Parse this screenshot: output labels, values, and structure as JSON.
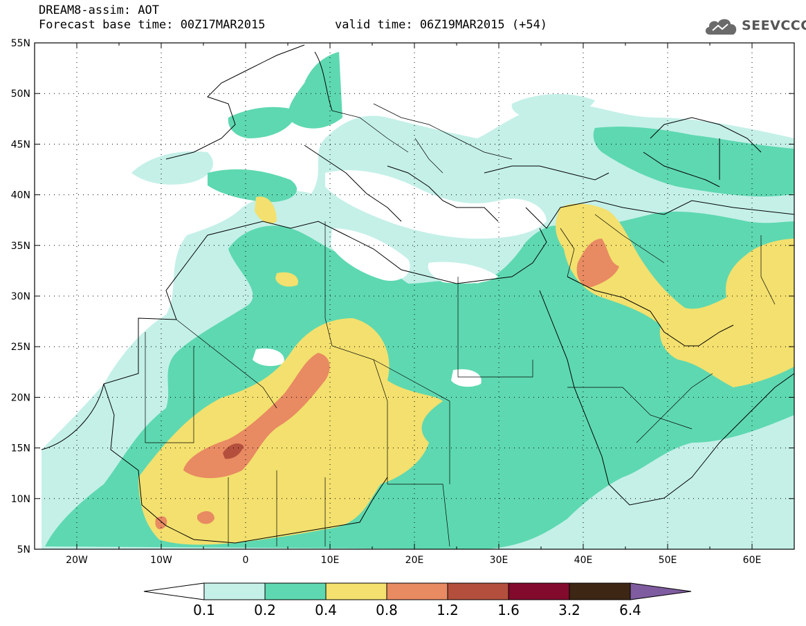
{
  "header": {
    "line1": "DREAM8-assim: AOT",
    "line2_base": "Forecast base time: 00Z17MAR2015",
    "line2_valid": "valid time: 06Z19MAR2015 (+54)"
  },
  "logo": {
    "text": "SEEVCCC",
    "icon": "cloud-icon"
  },
  "lat_labels": [
    "55N",
    "50N",
    "45N",
    "40N",
    "35N",
    "30N",
    "25N",
    "20N",
    "15N",
    "10N",
    "5N"
  ],
  "lon_labels": [
    "20W",
    "10W",
    "0",
    "10E",
    "20E",
    "30E",
    "40E",
    "50E",
    "60E"
  ],
  "colorbar": {
    "labels": [
      "0.1",
      "0.2",
      "0.4",
      "0.8",
      "1.2",
      "1.6",
      "3.2",
      "6.4"
    ],
    "colors": [
      "#c4f0e8",
      "#5ed8b0",
      "#f3e06e",
      "#e88a62",
      "#b34f3c",
      "#820a2c",
      "#3d2614",
      "#7f5c9f"
    ],
    "under_color": "#ffffff"
  },
  "field_colors": {
    "c01": "#c4f0e8",
    "c02": "#5ed8b0",
    "c04": "#f3e06e",
    "c08": "#e88a62",
    "c12": "#b34f3c"
  }
}
